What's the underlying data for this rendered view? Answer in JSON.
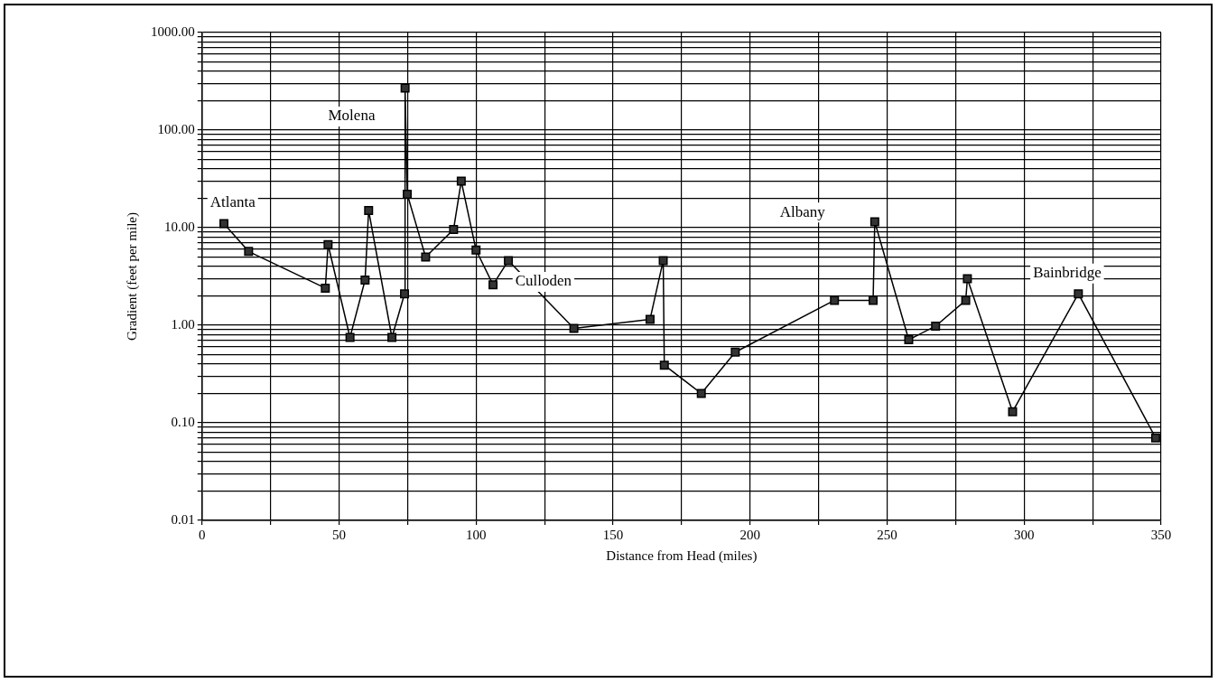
{
  "chart_data": {
    "type": "line",
    "xlabel": "Distance from Head (miles)",
    "ylabel": "Gradient (feet per mile)",
    "x": [
      8,
      17,
      45,
      46,
      54,
      59.5,
      60.8,
      69.3,
      73.9,
      74.1,
      74.9,
      81.6,
      91.8,
      94.6,
      100,
      106.2,
      111.8,
      135.7,
      163.5,
      168.3,
      168.7,
      182.2,
      194.6,
      230.8,
      244.9,
      245.5,
      257.9,
      267.7,
      278.7,
      279.3,
      295.8,
      319.8,
      348
    ],
    "series": [
      {
        "color": "#333333",
        "values": [
          11,
          5.7,
          2.4,
          6.7,
          0.75,
          2.9,
          15,
          0.75,
          2.1,
          270,
          22,
          5,
          9.6,
          30,
          5.9,
          2.6,
          4.6,
          0.93,
          1.15,
          4.6,
          0.39,
          0.2,
          0.53,
          1.8,
          1.8,
          11.5,
          0.71,
          0.98,
          1.8,
          3,
          0.13,
          2.1,
          0.07
        ]
      }
    ],
    "log": "y",
    "grid": true,
    "marker": "square",
    "line_style": "solid",
    "xlim": [
      0,
      350
    ],
    "xticks": [
      0,
      {
        "value": 25,
        "label": null
      },
      50,
      {
        "value": 75,
        "label": null
      },
      100,
      {
        "value": 125,
        "label": null
      },
      150,
      {
        "value": 175,
        "label": null
      },
      200,
      {
        "value": 225,
        "label": null
      },
      250,
      {
        "value": 275,
        "label": null
      },
      300,
      {
        "value": 325,
        "label": null
      },
      350
    ],
    "ylim": [
      0.01,
      1000
    ],
    "yticks": [
      {
        "value": 0.01,
        "label": "0.01"
      },
      {
        "value": 0.02,
        "label": null
      },
      {
        "value": 0.03,
        "label": null
      },
      {
        "value": 0.04,
        "label": null
      },
      {
        "value": 0.05,
        "label": null
      },
      {
        "value": 0.06,
        "label": null
      },
      {
        "value": 0.07,
        "label": null
      },
      {
        "value": 0.08,
        "label": null
      },
      {
        "value": 0.09,
        "label": null
      },
      {
        "value": 0.1,
        "label": "0.10"
      },
      {
        "value": 0.2,
        "label": null
      },
      {
        "value": 0.3,
        "label": null
      },
      {
        "value": 0.4,
        "label": null
      },
      {
        "value": 0.5,
        "label": null
      },
      {
        "value": 0.6,
        "label": null
      },
      {
        "value": 0.7,
        "label": null
      },
      {
        "value": 0.8,
        "label": null
      },
      {
        "value": 0.9,
        "label": null
      },
      {
        "value": 1,
        "label": "1.00"
      },
      {
        "value": 2,
        "label": null
      },
      {
        "value": 3,
        "label": null
      },
      {
        "value": 4,
        "label": null
      },
      {
        "value": 5,
        "label": null
      },
      {
        "value": 6,
        "label": null
      },
      {
        "value": 7,
        "label": null
      },
      {
        "value": 8,
        "label": null
      },
      {
        "value": 9,
        "label": null
      },
      {
        "value": 10,
        "label": "10.00"
      },
      {
        "value": 20,
        "label": null
      },
      {
        "value": 30,
        "label": null
      },
      {
        "value": 40,
        "label": null
      },
      {
        "value": 50,
        "label": null
      },
      {
        "value": 60,
        "label": null
      },
      {
        "value": 70,
        "label": null
      },
      {
        "value": 80,
        "label": null
      },
      {
        "value": 90,
        "label": null
      },
      {
        "value": 100,
        "label": "100.00"
      },
      {
        "value": 200,
        "label": null
      },
      {
        "value": 300,
        "label": null
      },
      {
        "value": 400,
        "label": null
      },
      {
        "value": 500,
        "label": null
      },
      {
        "value": 600,
        "label": null
      },
      {
        "value": 700,
        "label": null
      },
      {
        "value": 800,
        "label": null
      },
      {
        "value": 900,
        "label": null
      },
      {
        "value": 1000,
        "label": "1000.00"
      }
    ],
    "annotations": [
      "Atlanta",
      "Molena",
      "Culloden",
      "Albany",
      "Bainbridge"
    ]
  }
}
